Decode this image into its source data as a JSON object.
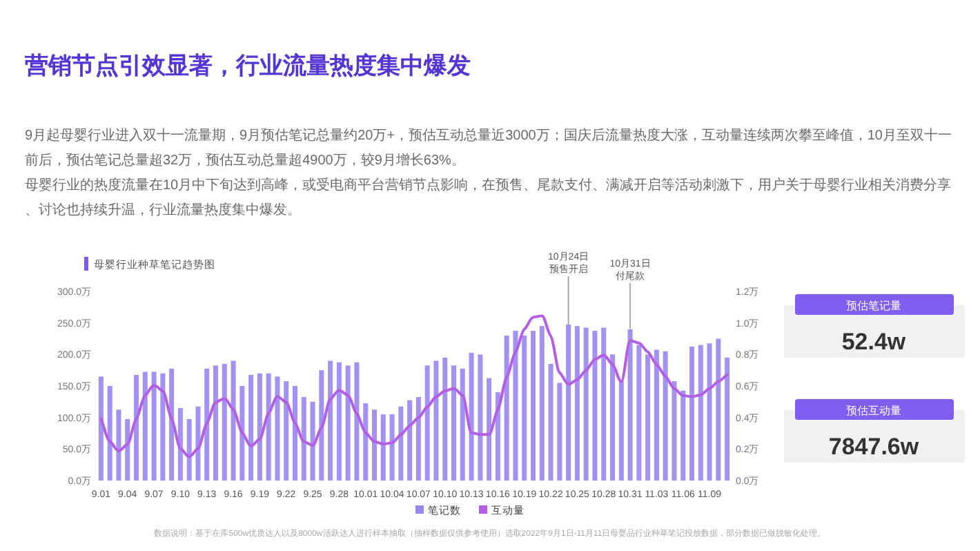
{
  "chart_data": {
    "type": "bar",
    "title": "营销节点引效显著，行业流量热度集中爆发",
    "subtitle": "母婴行业种草笔记趋势图",
    "annotations": [
      "9月起母婴行业进入双十一流量期，9月预估笔记总量约20万+，预估互动总量近3000万；国庆后流量热度大涨，互动量连续两次攀至峰值，10月至双十一前后，预估笔记总量超32万，预估互动总量超4900万，较9月增长63%。",
      "母婴行业的热度流量在10月中下旬达到高峰，或受电商平台营销节点影响，在预售、尾款支付、满减开启等活动刺激下，用户关于母婴行业相关消费分享、讨论也持续升温，行业流量热度集中爆发。",
      "预估笔记量",
      "52.4w",
      "预估互动量",
      "7847.6w",
      "数据说明：基于在库500w优质达人以及8000w活跃达人进行样本抽取（抽样数据仅供参考使用）选取2022年9月1日-11月11日母婴品行业种草笔记投放数据，部分数据已做脱敏化处理。",
      "10月24日",
      "预售开启",
      "10月31日",
      "付尾款"
    ],
    "categories": [
      "9.01",
      null,
      null,
      "9.04",
      null,
      null,
      "9.07",
      null,
      null,
      "9.10",
      null,
      null,
      "9.13",
      null,
      null,
      "9.16",
      null,
      null,
      "9.19",
      null,
      null,
      "9.22",
      null,
      null,
      "9.25",
      null,
      null,
      "9.28",
      null,
      null,
      "10.01",
      null,
      null,
      "10.04",
      null,
      null,
      "10.07",
      null,
      null,
      "10.10",
      null,
      null,
      "10.13",
      null,
      null,
      "10.16",
      null,
      null,
      "10.19",
      null,
      null,
      "10.22",
      null,
      null,
      "10.25",
      null,
      null,
      "10.28",
      null,
      null,
      "10.31",
      null,
      null,
      "11.03",
      null,
      null,
      "11.06",
      null,
      null,
      "11.09",
      null,
      null
    ],
    "series": [
      {
        "name": "笔记数",
        "axis": "y2",
        "color": "#9a86f2",
        "values": [
          0.66,
          0.6,
          0.45,
          0.39,
          0.67,
          0.69,
          0.69,
          0.68,
          0.71,
          0.46,
          0.39,
          0.47,
          0.71,
          0.73,
          0.74,
          0.76,
          0.6,
          0.67,
          0.68,
          0.68,
          0.66,
          0.63,
          0.6,
          0.53,
          0.5,
          0.7,
          0.76,
          0.75,
          0.73,
          0.75,
          0.49,
          0.45,
          0.42,
          0.42,
          0.47,
          0.51,
          0.53,
          0.73,
          0.76,
          0.78,
          0.73,
          0.71,
          0.81,
          0.8,
          0.65,
          0.56,
          0.92,
          0.95,
          0.92,
          0.95,
          0.98,
          0.74,
          0.62,
          0.99,
          0.98,
          0.97,
          0.95,
          0.97,
          0.8,
          0.63,
          0.96,
          0.86,
          0.8,
          0.83,
          0.82,
          0.63,
          0.57,
          0.85,
          0.86,
          0.87,
          0.9,
          0.78
        ]
      },
      {
        "name": "互动量",
        "type": "line",
        "color": "#b45ee6",
        "values": [
          98,
          62,
          47,
          58,
          98,
          135,
          151,
          142,
          98,
          51,
          38,
          51,
          91,
          124,
          130,
          113,
          76,
          55,
          66,
          107,
          133,
          124,
          91,
          62,
          56,
          84,
          129,
          143,
          135,
          106,
          76,
          62,
          58,
          60,
          73,
          87,
          100,
          117,
          133,
          142,
          146,
          135,
          76,
          73,
          73,
          113,
          164,
          204,
          240,
          259,
          261,
          229,
          171,
          153,
          160,
          175,
          192,
          199,
          184,
          157,
          222,
          218,
          204,
          184,
          165,
          146,
          135,
          133,
          136,
          146,
          157,
          168
        ]
      }
    ],
    "ylim": [
      0,
      300
    ],
    "yticks": [
      {
        "value": 0,
        "label": "0.0万"
      },
      {
        "value": 50,
        "label": "50.0万"
      },
      {
        "value": 100,
        "label": "100.0万"
      },
      {
        "value": 150,
        "label": "150.0万"
      },
      {
        "value": 200,
        "label": "200.0万"
      },
      {
        "value": 250,
        "label": "250.0万"
      },
      {
        "value": 300,
        "label": "300.0万"
      }
    ],
    "y2lim": [
      0,
      1.2
    ],
    "y2ticks": [
      {
        "value": 0,
        "label": "0.0万"
      },
      {
        "value": 0.2,
        "label": "0.2万"
      },
      {
        "value": 0.4,
        "label": "0.4万"
      },
      {
        "value": 0.6,
        "label": "0.6万"
      },
      {
        "value": 0.8,
        "label": "0.8万"
      },
      {
        "value": 1.0,
        "label": "1.0万"
      },
      {
        "value": 1.2,
        "label": "1.2万"
      }
    ],
    "legend": "bottom",
    "marker": "none",
    "line_style": "solid"
  }
}
